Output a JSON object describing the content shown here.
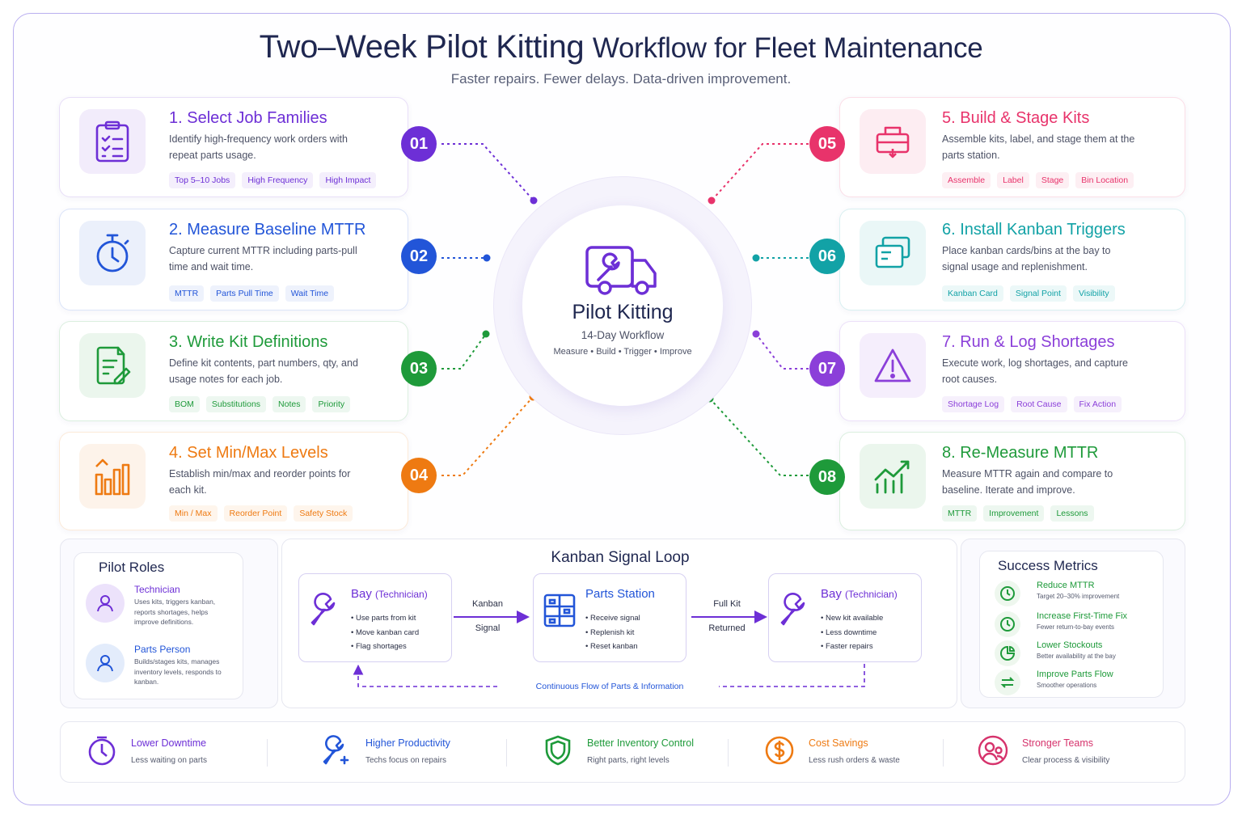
{
  "title": {
    "part1": "Two–Week Pilot Kitting",
    "part2": "Workflow for Fleet Maintenance"
  },
  "subtitle": "Faster repairs. Fewer delays. Data-driven improvement.",
  "steps": [
    {
      "num": "01",
      "title": "1. Select Job Families",
      "desc": "Identify high-frequency work orders with repeat parts usage.",
      "tags": [
        "Top 5–10 Jobs",
        "High Frequency",
        "High Impact"
      ],
      "color": "#6d2fd6",
      "icon": "clipboard-checklist-icon"
    },
    {
      "num": "02",
      "title": "2. Measure Baseline MTTR",
      "desc": "Capture current MTTR including parts-pull time and wait time.",
      "tags": [
        "MTTR",
        "Parts Pull Time",
        "Wait Time"
      ],
      "color": "#2255d8",
      "icon": "stopwatch-icon"
    },
    {
      "num": "03",
      "title": "3. Write Kit Definitions",
      "desc": "Define kit contents, part numbers, qty, and usage notes for each job.",
      "tags": [
        "BOM",
        "Substitutions",
        "Notes",
        "Priority"
      ],
      "color": "#1e9a3a",
      "icon": "document-edit-icon"
    },
    {
      "num": "04",
      "title": "4. Set Min/Max Levels",
      "desc": "Establish min/max and reorder points for each kit.",
      "tags": [
        "Min / Max",
        "Reorder Point",
        "Safety Stock"
      ],
      "color": "#ee7a12",
      "icon": "bar-chart-icon"
    },
    {
      "num": "05",
      "title": "5. Build & Stage Kits",
      "desc": "Assemble kits, label, and stage them at the parts station.",
      "tags": [
        "Assemble",
        "Label",
        "Stage",
        "Bin Location"
      ],
      "color": "#e8336b",
      "icon": "kit-box-icon"
    },
    {
      "num": "06",
      "title": "6. Install Kanban Triggers",
      "desc": "Place kanban cards/bins at the bay to signal usage and replenishment.",
      "tags": [
        "Kanban Card",
        "Signal Point",
        "Visibility"
      ],
      "color": "#12a2a6",
      "icon": "kanban-cards-icon"
    },
    {
      "num": "07",
      "title": "7. Run & Log Shortages",
      "desc": "Execute work, log shortages, and capture root causes.",
      "tags": [
        "Shortage Log",
        "Root Cause",
        "Fix Action"
      ],
      "color": "#8b3fd9",
      "icon": "warning-triangle-icon"
    },
    {
      "num": "08",
      "title": "8. Re-Measure MTTR",
      "desc": "Measure MTTR again and compare to baseline. Iterate and improve.",
      "tags": [
        "MTTR",
        "Improvement",
        "Lessons"
      ],
      "color": "#1e9a3a",
      "icon": "trend-up-chart-icon"
    }
  ],
  "hub": {
    "title": "Pilot Kitting",
    "sub": "14-Day Workflow",
    "meta": "Measure • Build • Trigger • Improve",
    "icon": "truck-wrench-icon"
  },
  "roles": {
    "title": "Pilot Roles",
    "items": [
      {
        "name": "Technician",
        "desc": "Uses kits, triggers kanban, reports shortages, helps improve definitions.",
        "color": "#6d2fd6"
      },
      {
        "name": "Parts Person",
        "desc": "Builds/stages kits, manages inventory levels, responds to kanban.",
        "color": "#2255d8"
      }
    ]
  },
  "kanban": {
    "title": "Kanban Signal Loop",
    "boxes": [
      {
        "title": "Bay",
        "role": "(Technician)",
        "items": [
          "Use parts from kit",
          "Move kanban card",
          "Flag shortages"
        ],
        "color": "#6d2fd6",
        "icon": "wrench-icon"
      },
      {
        "title": "Parts Station",
        "role": "",
        "items": [
          "Receive signal",
          "Replenish kit",
          "Reset kanban"
        ],
        "color": "#2255d8",
        "icon": "parts-shelf-icon"
      },
      {
        "title": "Bay",
        "role": "(Technician)",
        "items": [
          "New kit available",
          "Less downtime",
          "Faster repairs"
        ],
        "color": "#6d2fd6",
        "icon": "wrench-icon"
      }
    ],
    "arrow1": {
      "top": "Kanban",
      "bottom": "Signal"
    },
    "arrow2": {
      "top": "Full Kit",
      "bottom": "Returned"
    },
    "loop_label": "Continuous Flow of Parts & Information"
  },
  "metrics": {
    "title": "Success Metrics",
    "items": [
      {
        "name": "Reduce MTTR",
        "desc": "Target 20–30% improvement",
        "icon": "clock-icon"
      },
      {
        "name": "Increase First-Time Fix",
        "desc": "Fewer return-to-bay events",
        "icon": "clock-icon"
      },
      {
        "name": "Lower Stockouts",
        "desc": "Better availability at the bay",
        "icon": "pie-chart-icon"
      },
      {
        "name": "Improve Parts Flow",
        "desc": "Smoother operations",
        "icon": "swap-arrows-icon"
      }
    ]
  },
  "benefits": [
    {
      "name": "Lower Downtime",
      "desc": "Less waiting on parts",
      "color": "#6d2fd6",
      "icon": "clock-icon"
    },
    {
      "name": "Higher Productivity",
      "desc": "Techs focus on repairs",
      "color": "#2255d8",
      "icon": "wrench-sparkle-icon"
    },
    {
      "name": "Better Inventory Control",
      "desc": "Right parts, right levels",
      "color": "#1e9a3a",
      "icon": "shield-icon"
    },
    {
      "name": "Cost Savings",
      "desc": "Less rush orders & waste",
      "color": "#ee7a12",
      "icon": "dollar-coin-icon"
    },
    {
      "name": "Stronger Teams",
      "desc": "Clear process & visibility",
      "color": "#d6336c",
      "icon": "team-icon"
    }
  ]
}
